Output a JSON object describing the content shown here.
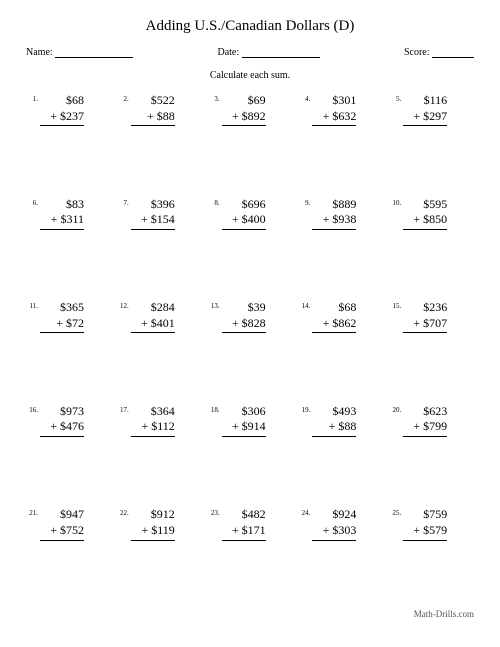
{
  "title": "Adding U.S./Canadian Dollars (D)",
  "meta": {
    "name_label": "Name:",
    "date_label": "Date:",
    "score_label": "Score:"
  },
  "instruction": "Calculate each sum.",
  "currency": "$",
  "operator": "+",
  "problems": [
    {
      "n": "1.",
      "a": 68,
      "b": 237
    },
    {
      "n": "2.",
      "a": 522,
      "b": 88
    },
    {
      "n": "3.",
      "a": 69,
      "b": 892
    },
    {
      "n": "4.",
      "a": 301,
      "b": 632
    },
    {
      "n": "5.",
      "a": 116,
      "b": 297
    },
    {
      "n": "6.",
      "a": 83,
      "b": 311
    },
    {
      "n": "7.",
      "a": 396,
      "b": 154
    },
    {
      "n": "8.",
      "a": 696,
      "b": 400
    },
    {
      "n": "9.",
      "a": 889,
      "b": 938
    },
    {
      "n": "10.",
      "a": 595,
      "b": 850
    },
    {
      "n": "11.",
      "a": 365,
      "b": 72
    },
    {
      "n": "12.",
      "a": 284,
      "b": 401
    },
    {
      "n": "13.",
      "a": 39,
      "b": 828
    },
    {
      "n": "14.",
      "a": 68,
      "b": 862
    },
    {
      "n": "15.",
      "a": 236,
      "b": 707
    },
    {
      "n": "16.",
      "a": 973,
      "b": 476
    },
    {
      "n": "17.",
      "a": 364,
      "b": 112
    },
    {
      "n": "18.",
      "a": 306,
      "b": 914
    },
    {
      "n": "19.",
      "a": 493,
      "b": 88
    },
    {
      "n": "20.",
      "a": 623,
      "b": 799
    },
    {
      "n": "21.",
      "a": 947,
      "b": 752
    },
    {
      "n": "22.",
      "a": 912,
      "b": 119
    },
    {
      "n": "23.",
      "a": 482,
      "b": 171
    },
    {
      "n": "24.",
      "a": 924,
      "b": 303
    },
    {
      "n": "25.",
      "a": 759,
      "b": 579
    }
  ],
  "footer": "Math-Drills.com",
  "blanks": {
    "name_w": 78,
    "date_w": 78,
    "score_w": 42
  }
}
